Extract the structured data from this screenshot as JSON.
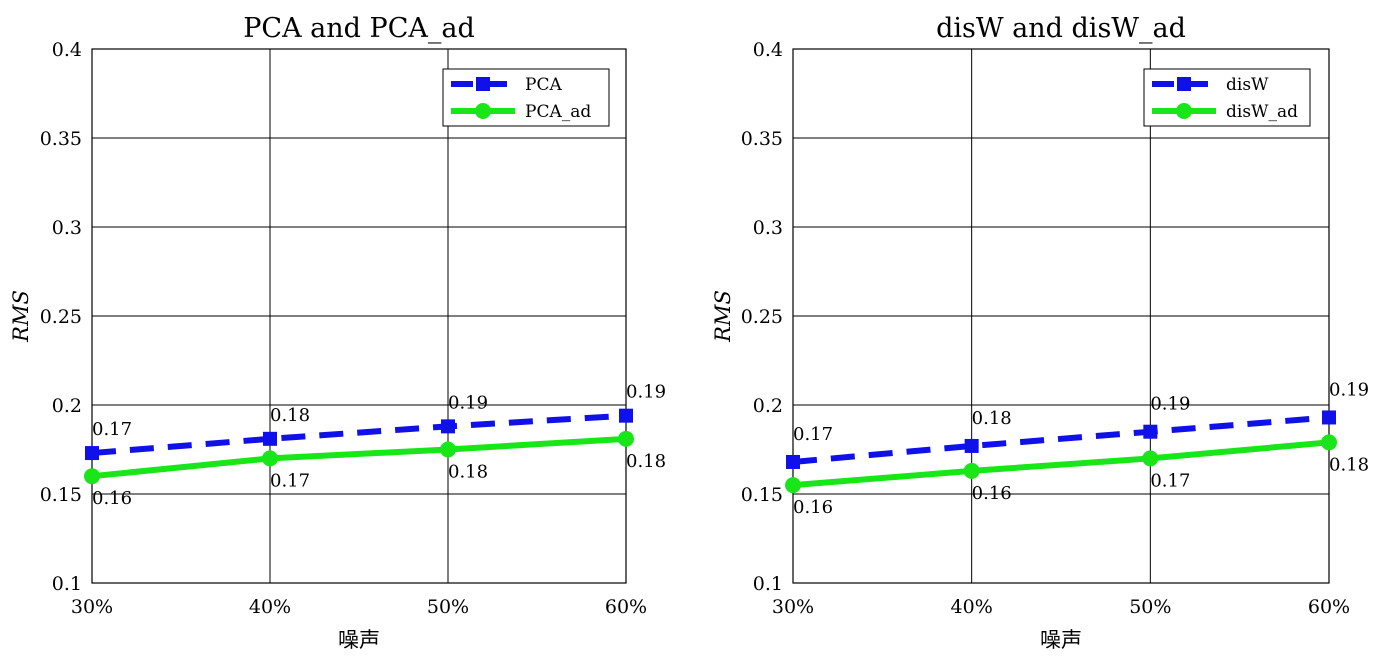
{
  "chart_data": [
    {
      "type": "line",
      "title": "PCA and PCA_ad",
      "xlabel": "噪声",
      "ylabel": "RMS",
      "categories": [
        "30%",
        "40%",
        "50%",
        "60%"
      ],
      "ylim": [
        0.1,
        0.4
      ],
      "yticks": [
        "0.1",
        "0.15",
        "0.2",
        "0.25",
        "0.3",
        "0.35",
        "0.4"
      ],
      "grid": true,
      "legend_position": "top-right",
      "series": [
        {
          "name": "PCA",
          "values": [
            0.173,
            0.181,
            0.188,
            0.194
          ],
          "labels": [
            "0.17",
            "0.18",
            "0.19",
            "0.19"
          ],
          "color": "#1010e8",
          "style": "dashed",
          "marker": "square"
        },
        {
          "name": "PCA_ad",
          "values": [
            0.16,
            0.17,
            0.175,
            0.181
          ],
          "labels": [
            "0.16",
            "0.17",
            "0.18",
            "0.18"
          ],
          "color": "#19e619",
          "style": "solid",
          "marker": "circle"
        }
      ]
    },
    {
      "type": "line",
      "title": "disW and disW_ad",
      "xlabel": "噪声",
      "ylabel": "RMS",
      "categories": [
        "30%",
        "40%",
        "50%",
        "60%"
      ],
      "ylim": [
        0.1,
        0.4
      ],
      "yticks": [
        "0.1",
        "0.15",
        "0.2",
        "0.25",
        "0.3",
        "0.35",
        "0.4"
      ],
      "grid": true,
      "legend_position": "top-right",
      "series": [
        {
          "name": "disW",
          "values": [
            0.168,
            0.177,
            0.185,
            0.193
          ],
          "labels": [
            "0.17",
            "0.18",
            "0.19",
            "0.19"
          ],
          "color": "#1010e8",
          "style": "dashed",
          "marker": "square"
        },
        {
          "name": "disW_ad",
          "values": [
            0.155,
            0.163,
            0.17,
            0.179
          ],
          "labels": [
            "0.16",
            "0.16",
            "0.17",
            "0.18"
          ],
          "color": "#19e619",
          "style": "solid",
          "marker": "circle"
        }
      ]
    }
  ]
}
